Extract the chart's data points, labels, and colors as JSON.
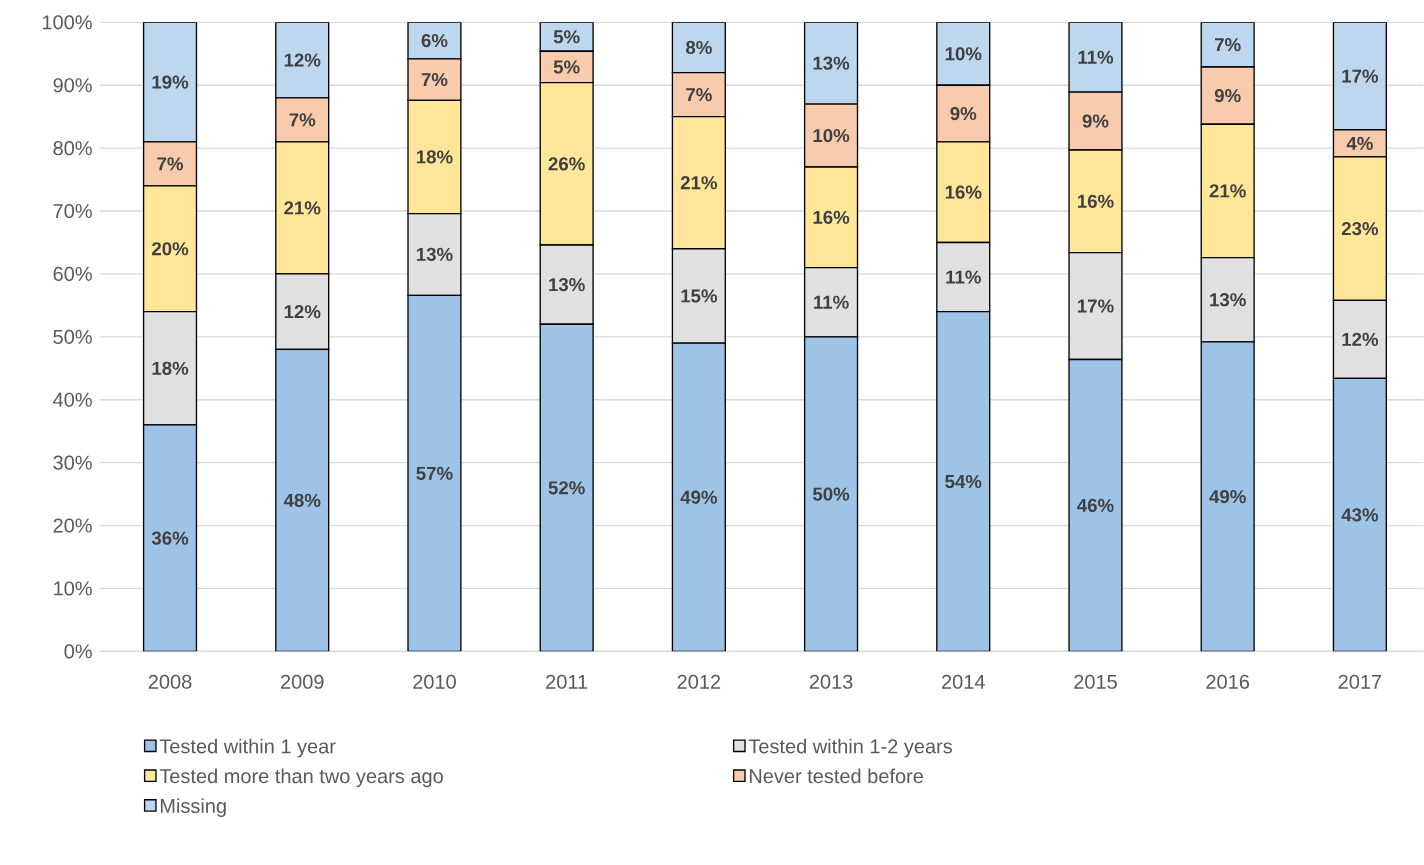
{
  "chart_data": {
    "type": "bar",
    "stacked": true,
    "categories": [
      "2008",
      "2009",
      "2010",
      "2011",
      "2012",
      "2013",
      "2014",
      "2015",
      "2016",
      "2017"
    ],
    "series": [
      {
        "name": "Tested within 1 year",
        "color": "#9dc3e6",
        "values": [
          36,
          48,
          56.6,
          52,
          49,
          50,
          54,
          46.4,
          49.2,
          43.4
        ],
        "value_labels": [
          "36%",
          "48%",
          "57%",
          "52%",
          "49%",
          "50%",
          "54%",
          "46%",
          "49%",
          "43%"
        ]
      },
      {
        "name": "Tested within 1-2 years",
        "color": "#e0e0e0",
        "values": [
          18,
          12,
          13,
          12.6,
          15,
          11,
          11,
          17,
          13.4,
          12.4
        ],
        "value_labels": [
          "18%",
          "12%",
          "13%",
          "13%",
          "15%",
          "11%",
          "11%",
          "17%",
          "13%",
          "12%"
        ]
      },
      {
        "name": "Tested more than two years ago",
        "color": "#ffe699",
        "values": [
          20,
          21,
          18,
          25.8,
          21,
          16,
          16,
          16.3,
          21.2,
          22.8
        ],
        "value_labels": [
          "20%",
          "21%",
          "18%",
          "26%",
          "21%",
          "16%",
          "16%",
          "16%",
          "21%",
          "23%"
        ]
      },
      {
        "name": "Never tested before",
        "color": "#f8cbad",
        "values": [
          7,
          7,
          6.6,
          5,
          7,
          10,
          9,
          9.2,
          9.1,
          4.3
        ],
        "value_labels": [
          "7%",
          "7%",
          "7%",
          "5%",
          "7%",
          "10%",
          "9%",
          "9%",
          "9%",
          "4%"
        ]
      },
      {
        "name": "Missing",
        "color": "#bdd7ee",
        "values": [
          19,
          12,
          5.8,
          4.6,
          8,
          13,
          10,
          11.1,
          7.1,
          17.1
        ],
        "value_labels": [
          "19%",
          "12%",
          "6%",
          "5%",
          "8%",
          "13%",
          "10%",
          "11%",
          "7%",
          "17%"
        ]
      }
    ],
    "ylim": [
      0,
      100
    ],
    "yticks": [
      {
        "value": 0,
        "label": "0%"
      },
      {
        "value": 10,
        "label": "10%"
      },
      {
        "value": 20,
        "label": "20%"
      },
      {
        "value": 30,
        "label": "30%"
      },
      {
        "value": 40,
        "label": "40%"
      },
      {
        "value": 50,
        "label": "50%"
      },
      {
        "value": 60,
        "label": "60%"
      },
      {
        "value": 70,
        "label": "70%"
      },
      {
        "value": 80,
        "label": "80%"
      },
      {
        "value": 90,
        "label": "90%"
      },
      {
        "value": 100,
        "label": "100%"
      }
    ],
    "grid": "y",
    "legend": "bottom"
  }
}
